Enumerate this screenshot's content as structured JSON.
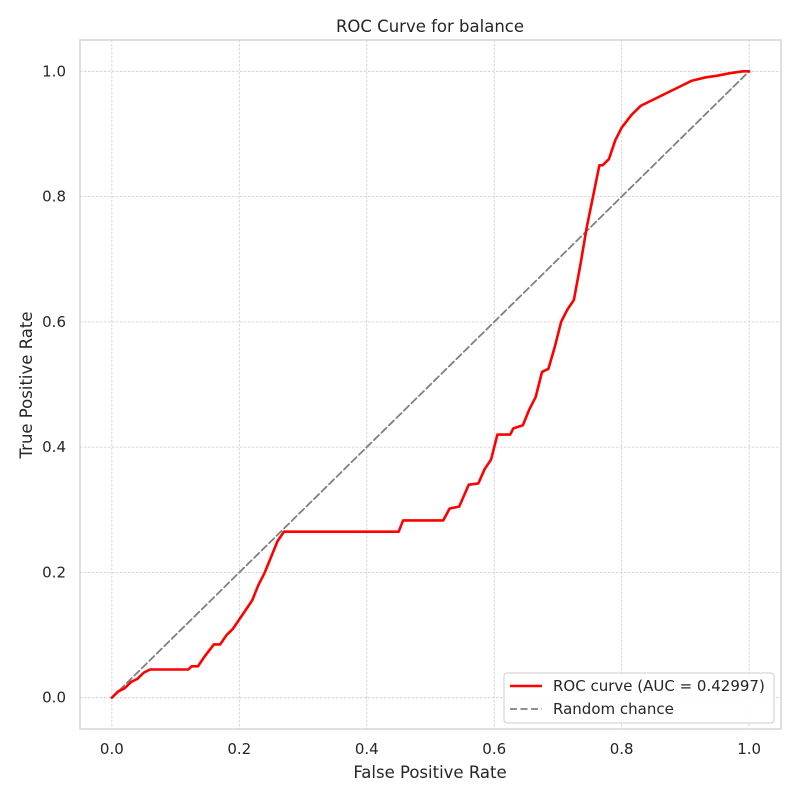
{
  "chart_data": {
    "type": "line",
    "title": "ROC Curve for balance",
    "xlabel": "False Positive Rate",
    "ylabel": "True Positive Rate",
    "xlim": [
      -0.05,
      1.05
    ],
    "ylim": [
      -0.05,
      1.05
    ],
    "xticks": [
      0.0,
      0.2,
      0.4,
      0.6,
      0.8,
      1.0
    ],
    "yticks": [
      0.0,
      0.2,
      0.4,
      0.6,
      0.8,
      1.0
    ],
    "xtick_labels": [
      "0.0",
      "0.2",
      "0.4",
      "0.6",
      "0.8",
      "1.0"
    ],
    "ytick_labels": [
      "0.0",
      "0.2",
      "0.4",
      "0.6",
      "0.8",
      "1.0"
    ],
    "grid": true,
    "legend_position": "lower-right",
    "series": [
      {
        "name": "ROC curve (AUC = 0.42997)",
        "color": "#ff0000",
        "line_style": "solid",
        "x": [
          0.0,
          0.01,
          0.02,
          0.03,
          0.04,
          0.05,
          0.06,
          0.065,
          0.08,
          0.1,
          0.12,
          0.125,
          0.135,
          0.145,
          0.16,
          0.17,
          0.18,
          0.19,
          0.2,
          0.21,
          0.22,
          0.23,
          0.24,
          0.25,
          0.26,
          0.27,
          0.273,
          0.3,
          0.35,
          0.4,
          0.45,
          0.457,
          0.48,
          0.5,
          0.52,
          0.53,
          0.545,
          0.56,
          0.575,
          0.585,
          0.595,
          0.605,
          0.625,
          0.63,
          0.645,
          0.655,
          0.665,
          0.675,
          0.685,
          0.695,
          0.705,
          0.715,
          0.725,
          0.735,
          0.745,
          0.755,
          0.765,
          0.77,
          0.78,
          0.79,
          0.8,
          0.815,
          0.83,
          0.85,
          0.87,
          0.89,
          0.91,
          0.93,
          0.95,
          0.97,
          0.99,
          1.0
        ],
        "y": [
          0.0,
          0.01,
          0.015,
          0.025,
          0.03,
          0.04,
          0.045,
          0.045,
          0.045,
          0.045,
          0.045,
          0.05,
          0.05,
          0.065,
          0.085,
          0.085,
          0.1,
          0.11,
          0.125,
          0.14,
          0.155,
          0.18,
          0.2,
          0.225,
          0.25,
          0.265,
          0.265,
          0.265,
          0.265,
          0.265,
          0.265,
          0.283,
          0.283,
          0.283,
          0.283,
          0.302,
          0.305,
          0.34,
          0.342,
          0.365,
          0.38,
          0.42,
          0.42,
          0.43,
          0.435,
          0.46,
          0.48,
          0.52,
          0.525,
          0.56,
          0.6,
          0.62,
          0.635,
          0.69,
          0.75,
          0.8,
          0.85,
          0.85,
          0.86,
          0.89,
          0.91,
          0.93,
          0.945,
          0.955,
          0.965,
          0.975,
          0.985,
          0.99,
          0.993,
          0.997,
          1.0,
          1.0
        ]
      },
      {
        "name": "Random chance",
        "color": "#808080",
        "line_style": "dashed",
        "x": [
          0.0,
          1.0
        ],
        "y": [
          0.0,
          1.0
        ]
      }
    ]
  }
}
